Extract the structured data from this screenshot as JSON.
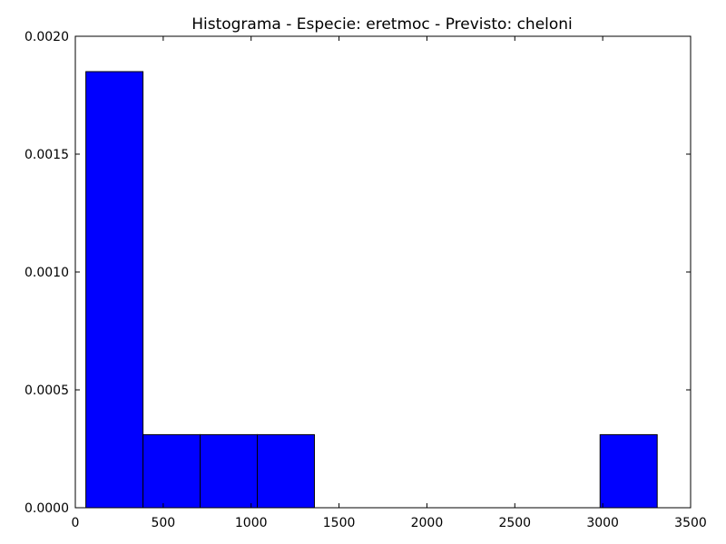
{
  "chart_data": {
    "type": "bar",
    "title": "Histograma - Especie: eretmoc - Previsto: cheloni",
    "xlabel": "",
    "ylabel": "",
    "xlim": [
      0,
      3500
    ],
    "ylim": [
      0,
      0.002
    ],
    "bar_color": "#0000ff",
    "edge_color": "#000000",
    "grid": false,
    "bins": [
      {
        "x0": 60,
        "x1": 385,
        "value": 0.00185
      },
      {
        "x0": 385,
        "x1": 710,
        "value": 0.00031
      },
      {
        "x0": 710,
        "x1": 1035,
        "value": 0.00031
      },
      {
        "x0": 1035,
        "x1": 1360,
        "value": 0.00031
      },
      {
        "x0": 1360,
        "x1": 1685,
        "value": 0
      },
      {
        "x0": 1685,
        "x1": 2010,
        "value": 0
      },
      {
        "x0": 2010,
        "x1": 2335,
        "value": 0
      },
      {
        "x0": 2335,
        "x1": 2660,
        "value": 0
      },
      {
        "x0": 2660,
        "x1": 2985,
        "value": 0
      },
      {
        "x0": 2985,
        "x1": 3310,
        "value": 0.00031
      }
    ],
    "x_ticks": [
      {
        "value": 0,
        "label": "0"
      },
      {
        "value": 500,
        "label": "500"
      },
      {
        "value": 1000,
        "label": "1000"
      },
      {
        "value": 1500,
        "label": "1500"
      },
      {
        "value": 2000,
        "label": "2000"
      },
      {
        "value": 2500,
        "label": "2500"
      },
      {
        "value": 3000,
        "label": "3000"
      },
      {
        "value": 3500,
        "label": "3500"
      }
    ],
    "y_ticks": [
      {
        "value": 0,
        "label": "0.0000"
      },
      {
        "value": 0.0005,
        "label": "0.0005"
      },
      {
        "value": 0.001,
        "label": "0.0010"
      },
      {
        "value": 0.0015,
        "label": "0.0015"
      },
      {
        "value": 0.002,
        "label": "0.0020"
      }
    ]
  }
}
